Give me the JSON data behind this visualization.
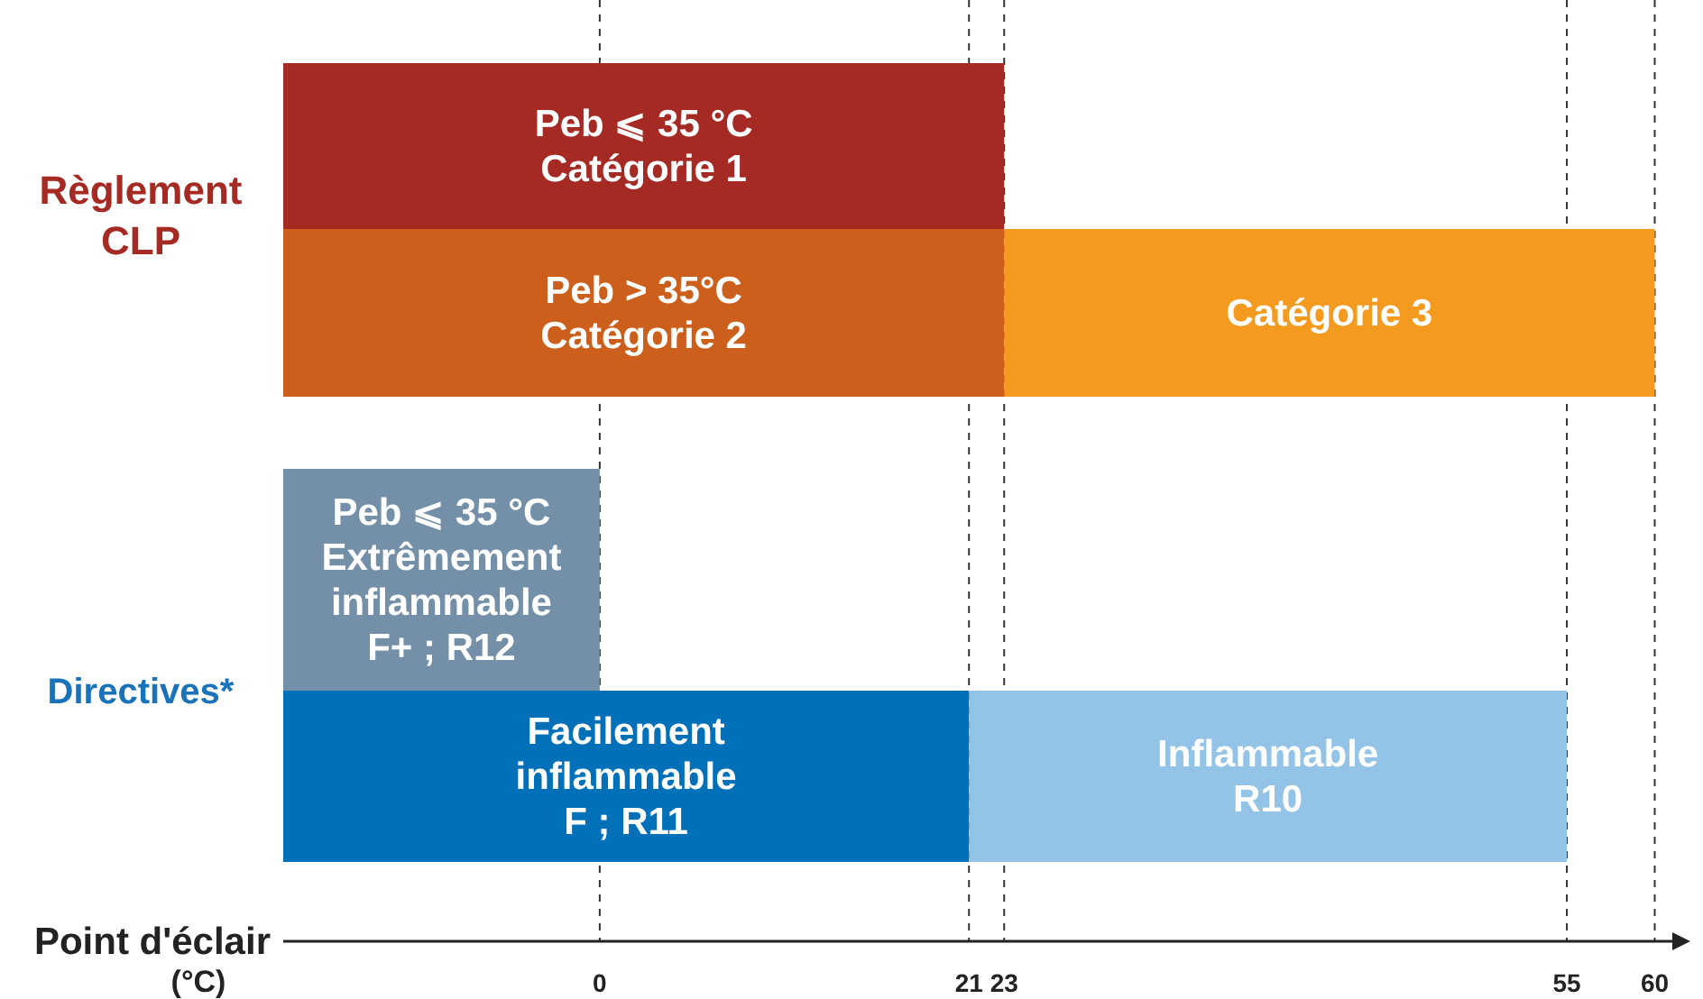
{
  "chart_data": {
    "type": "bar",
    "orientation": "horizontal",
    "categories": [
      null,
      null,
      null,
      null
    ],
    "xlabel": "Point d'éclair",
    "annotations": [
      "(°C)",
      "Règlement\nCLP",
      "Directives*"
    ],
    "xlim": [
      -18,
      61
    ],
    "xticks": [
      0,
      21,
      23,
      55,
      60
    ],
    "grid": "x",
    "series": [
      {
        "values": [
          41,
          41,
          18,
          39
        ],
        "base": [
          -18,
          -18,
          -18,
          -18
        ],
        "colors": [
          "#a52a24",
          "#cc5f1c",
          "#7490a8",
          "#0070b9"
        ],
        "value_labels": [
          "Peb ⩽ 35 °C\nCatégorie 1",
          "Peb > 35°C\nCatégorie 2",
          "Peb ⩽ 35 °C\nExtrêmement\ninflammable\nF+ ; R12",
          "Facilement\ninflammable\nF ; R11"
        ]
      },
      {
        "values": [
          null,
          37,
          null,
          34
        ],
        "base": [
          null,
          23,
          null,
          21
        ],
        "colors": [
          null,
          "#f39a1f",
          null,
          "#93c4e8"
        ],
        "value_labels": [
          null,
          "Catégorie 3",
          null,
          "Inflammable\nR10"
        ]
      }
    ]
  }
}
